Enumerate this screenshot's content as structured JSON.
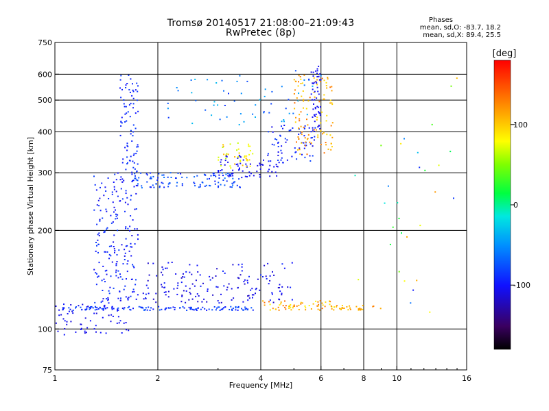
{
  "title_line1": "Tromsø 20140517 21:08:00–21:09:43",
  "title_line2": "RwPretec (8p)",
  "phase_info": {
    "heading": "Phases",
    "o_line": "mean, sd,O: -83.7, 18.2",
    "x_line": "mean, sd,X:  89.4, 25.5"
  },
  "colorbar": {
    "label": "[deg]",
    "ticks": [
      {
        "value": 100,
        "label": "100"
      },
      {
        "value": 0,
        "label": "0"
      },
      {
        "value": -100,
        "label": "-100"
      }
    ],
    "range": [
      -180,
      180
    ]
  },
  "chart_data": {
    "type": "scatter",
    "xlabel": "Frequency [MHz]",
    "ylabel": "Stationary phase Virtual Height [km]",
    "xscale": "log",
    "yscale": "log",
    "xlim": [
      1,
      16
    ],
    "ylim": [
      75,
      750
    ],
    "xticks": [
      {
        "value": 1,
        "label": "1"
      },
      {
        "value": 2,
        "label": "2"
      },
      {
        "value": 4,
        "label": "4"
      },
      {
        "value": 6,
        "label": "6"
      },
      {
        "value": 8,
        "label": "8"
      },
      {
        "value": 10,
        "label": "10"
      },
      {
        "value": 16,
        "label": "16"
      }
    ],
    "xgrid": [
      2,
      4,
      6,
      8,
      10
    ],
    "yticks": [
      {
        "value": 75,
        "label": "75"
      },
      {
        "value": 100,
        "label": "100"
      },
      {
        "value": 200,
        "label": "200"
      },
      {
        "value": 300,
        "label": "300"
      },
      {
        "value": 400,
        "label": "400"
      },
      {
        "value": 500,
        "label": "500"
      },
      {
        "value": 600,
        "label": "600"
      },
      {
        "value": 750,
        "label": "750"
      }
    ],
    "ygrid": [
      100,
      200,
      300,
      400,
      500,
      600
    ],
    "grid": true,
    "color_value": "phase [deg]",
    "point_clusters": [
      {
        "f_range": [
          1.0,
          1.7
        ],
        "h_range": [
          96,
          120
        ],
        "phase": [
          -115,
          -95
        ],
        "count": 60
      },
      {
        "f_range": [
          1.05,
          3.8
        ],
        "h_range": [
          114,
          117
        ],
        "phase": [
          -100,
          -70
        ],
        "count": 140
      },
      {
        "f_range": [
          1.3,
          1.75
        ],
        "h_range": [
          120,
          300
        ],
        "phase": [
          -110,
          -80
        ],
        "count": 200
      },
      {
        "f_range": [
          1.55,
          1.75
        ],
        "h_range": [
          300,
          600
        ],
        "phase": [
          -100,
          -80
        ],
        "count": 80
      },
      {
        "f_range": [
          1.7,
          3.5
        ],
        "h_range": [
          270,
          300
        ],
        "phase": [
          -100,
          -60
        ],
        "count": 110
      },
      {
        "f_range": [
          3.0,
          4.5
        ],
        "h_range": [
          290,
          340
        ],
        "phase": [
          -110,
          -100
        ],
        "count": 70
      },
      {
        "f_range": [
          3.0,
          3.8
        ],
        "h_range": [
          310,
          370
        ],
        "phase": [
          60,
          110
        ],
        "count": 40
      },
      {
        "f_range": [
          4.2,
          5.8
        ],
        "h_range": [
          320,
          420
        ],
        "phase": [
          -110,
          -80
        ],
        "count": 70
      },
      {
        "f_range": [
          5.0,
          6.5
        ],
        "h_range": [
          340,
          600
        ],
        "phase": [
          90,
          140
        ],
        "count": 110
      },
      {
        "f_range": [
          5.6,
          6.0
        ],
        "h_range": [
          400,
          640
        ],
        "phase": [
          -110,
          -100
        ],
        "count": 50
      },
      {
        "f_range": [
          1.8,
          5.0
        ],
        "h_range": [
          120,
          160
        ],
        "phase": [
          -120,
          -90
        ],
        "count": 160
      },
      {
        "f_range": [
          4.0,
          6.5
        ],
        "h_range": [
          114,
          122
        ],
        "phase": [
          80,
          140
        ],
        "count": 60
      },
      {
        "f_range": [
          6.5,
          9.0
        ],
        "h_range": [
          114,
          118
        ],
        "phase": [
          90,
          130
        ],
        "count": 30
      },
      {
        "f_range": [
          2.0,
          6.0
        ],
        "h_range": [
          420,
          620
        ],
        "phase": [
          -90,
          -30
        ],
        "count": 60
      },
      {
        "f_range": [
          7.5,
          15.0
        ],
        "h_range": [
          90,
          600
        ],
        "phase": [
          -100,
          120
        ],
        "count": 30
      }
    ]
  }
}
